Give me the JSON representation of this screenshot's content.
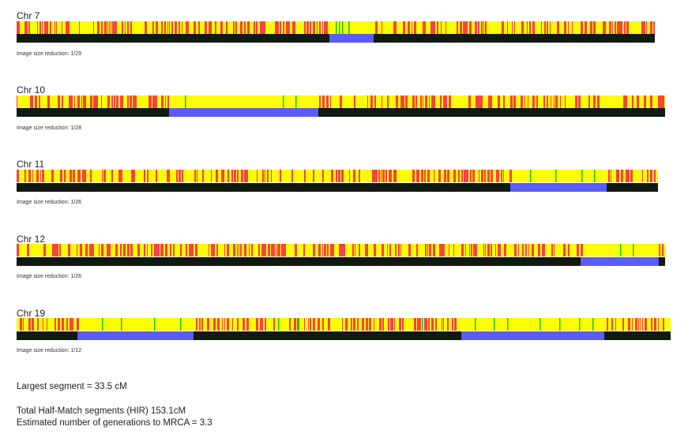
{
  "chromosomes": [
    {
      "title": "Chr 7",
      "note": "Image size reduction: 1/29",
      "seed": 7,
      "segments": [
        [
          0.49,
          0.56
        ]
      ],
      "green": [
        0.5,
        0.505,
        0.51,
        0.52
      ]
    },
    {
      "title": "Chr 10",
      "note": "Image size reduction: 1/28",
      "seed": 10,
      "segments": [
        [
          0.235,
          0.465
        ]
      ],
      "green": [
        0.26,
        0.41,
        0.43
      ]
    },
    {
      "title": "Chr 11",
      "note": "Image size reduction: 1/26",
      "seed": 11,
      "segments": [
        [
          0.77,
          0.92
        ]
      ],
      "green": [
        0.8,
        0.84,
        0.88,
        0.9
      ]
    },
    {
      "title": "Chr 12",
      "note": "Image size reduction: 1/26",
      "seed": 12,
      "segments": [
        [
          0.87,
          0.99
        ]
      ],
      "green": [
        0.93,
        0.95
      ]
    },
    {
      "title": "Chr 19",
      "note": "Image size reduction: 1/12",
      "seed": 19,
      "segments": [
        [
          0.093,
          0.27
        ],
        [
          0.68,
          0.898
        ]
      ],
      "green": [
        0.13,
        0.16,
        0.21,
        0.25,
        0.4,
        0.43,
        0.62,
        0.7,
        0.73,
        0.75,
        0.8,
        0.83,
        0.86,
        0.88
      ]
    }
  ],
  "colors": {
    "red": "#f64343",
    "yellow": "#fdfe00",
    "green": "#15c615",
    "blue": "#5b5bf5",
    "dark": "#111a11"
  },
  "summary": {
    "largest": "Largest segment = 33.5 cM",
    "total": "Total Half-Match segments (HIR) 153.1cM",
    "generations": "Estimated number of generations to MRCA = 3.3"
  }
}
